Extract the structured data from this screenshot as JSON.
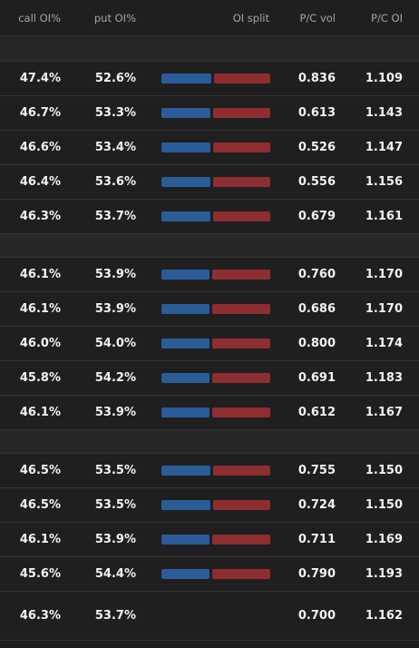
{
  "table": {
    "header": [
      "call OI%",
      "put OI%",
      "OI split",
      "P/C vol",
      "P/C OI"
    ],
    "groups": [
      [
        [
          "47.4%",
          "52.6%",
          "0.836",
          "1.109"
        ],
        [
          "46.7%",
          "53.3%",
          "0.613",
          "1.143"
        ],
        [
          "46.6%",
          "53.4%",
          "0.526",
          "1.147"
        ],
        [
          "46.4%",
          "53.6%",
          "0.556",
          "1.156"
        ],
        [
          "46.3%",
          "53.7%",
          "0.679",
          "1.161"
        ]
      ],
      [
        [
          "46.1%",
          "53.9%",
          "0.760",
          "1.170"
        ],
        [
          "46.1%",
          "53.9%",
          "0.686",
          "1.170"
        ],
        [
          "46.0%",
          "54.0%",
          "0.800",
          "1.174"
        ],
        [
          "45.8%",
          "54.2%",
          "0.691",
          "1.183"
        ],
        [
          "46.1%",
          "53.9%",
          "0.612",
          "1.167"
        ]
      ],
      [
        [
          "46.5%",
          "53.5%",
          "0.755",
          "1.150"
        ],
        [
          "46.5%",
          "53.5%",
          "0.724",
          "1.150"
        ],
        [
          "46.1%",
          "53.9%",
          "0.711",
          "1.169"
        ],
        [
          "45.6%",
          "54.4%",
          "0.790",
          "1.193"
        ]
      ]
    ],
    "total": [
      "46.3%",
      "53.7%",
      "0.700",
      "1.162"
    ]
  }
}
